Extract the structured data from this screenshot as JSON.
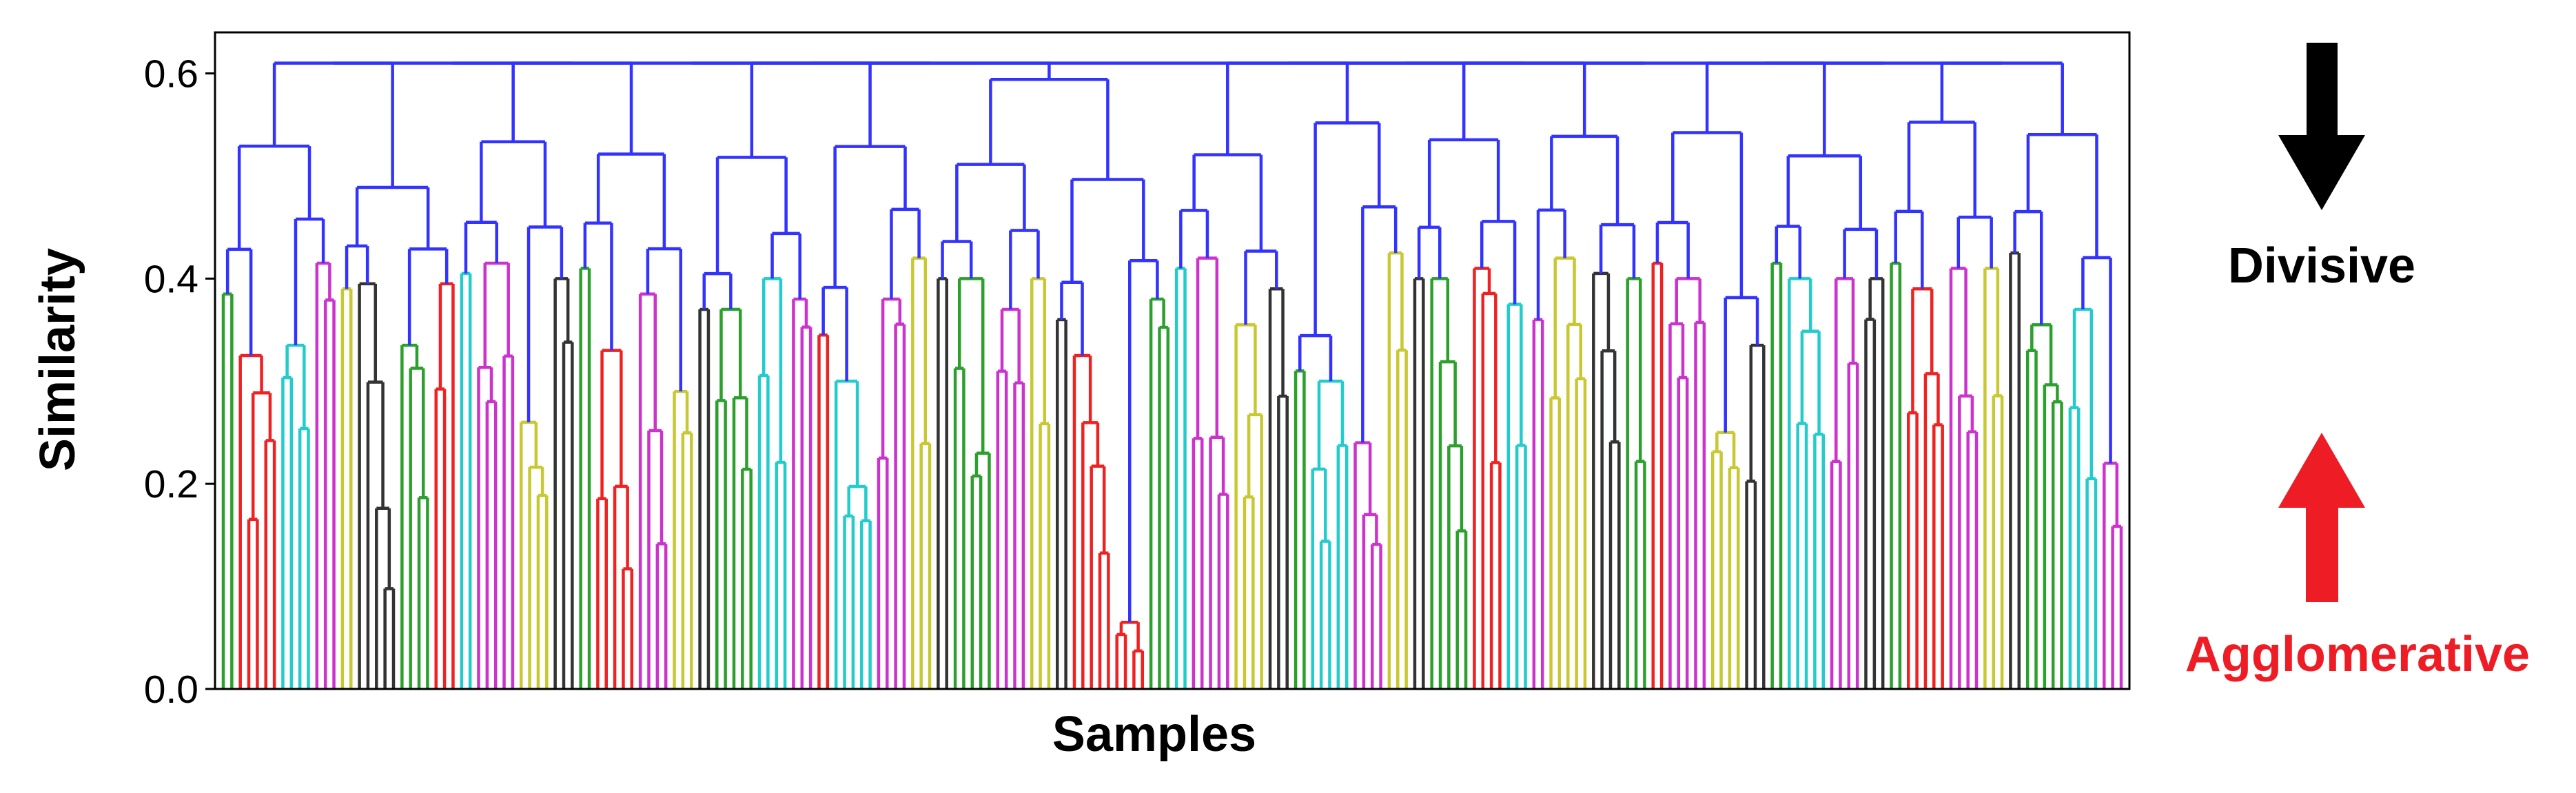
{
  "chart_data": {
    "type": "dendrogram",
    "title": "",
    "xlabel": "Samples",
    "ylabel": "Similarity",
    "ylim": [
      0.0,
      0.64
    ],
    "yticks": [
      0.0,
      0.2,
      0.4,
      0.6
    ],
    "ytick_labels": [
      "0.0",
      "0.2",
      "0.4",
      "0.6"
    ],
    "grid": false,
    "legend": "none",
    "root_height": 0.61,
    "top_merge_color": "#3333ff",
    "cluster_colors": [
      "#2ca02c",
      "#ee2222",
      "#22cccc",
      "#cc33cc",
      "#c8c832",
      "#333333"
    ],
    "clusters": [
      {
        "color_index": 0,
        "height": 0.385
      },
      {
        "color_index": 1,
        "height": 0.325
      },
      {
        "color_index": 2,
        "height": 0.335
      },
      {
        "color_index": 3,
        "height": 0.415
      },
      {
        "color_index": 4,
        "height": 0.39
      },
      {
        "color_index": 5,
        "height": 0.395
      },
      {
        "color_index": 0,
        "height": 0.335
      },
      {
        "color_index": 1,
        "height": 0.395
      },
      {
        "color_index": 2,
        "height": 0.405
      },
      {
        "color_index": 3,
        "height": 0.415
      },
      {
        "color_index": 4,
        "height": 0.26
      },
      {
        "color_index": 5,
        "height": 0.4
      },
      {
        "color_index": 0,
        "height": 0.41
      },
      {
        "color_index": 1,
        "height": 0.33
      },
      {
        "color_index": 3,
        "height": 0.385
      },
      {
        "color_index": 4,
        "height": 0.29
      },
      {
        "color_index": 5,
        "height": 0.37
      },
      {
        "color_index": 0,
        "height": 0.37
      },
      {
        "color_index": 2,
        "height": 0.4
      },
      {
        "color_index": 3,
        "height": 0.38
      },
      {
        "color_index": 1,
        "height": 0.345
      },
      {
        "color_index": 2,
        "height": 0.3
      },
      {
        "color_index": 3,
        "height": 0.38
      },
      {
        "color_index": 4,
        "height": 0.42
      },
      {
        "color_index": 5,
        "height": 0.4
      },
      {
        "color_index": 0,
        "height": 0.4
      },
      {
        "color_index": 3,
        "height": 0.37
      },
      {
        "color_index": 4,
        "height": 0.4
      },
      {
        "color_index": 5,
        "height": 0.36
      },
      {
        "color_index": 1,
        "height": 0.325
      },
      {
        "color_index": 1,
        "height": 0.065
      },
      {
        "color_index": 0,
        "height": 0.38
      },
      {
        "color_index": 2,
        "height": 0.41
      },
      {
        "color_index": 3,
        "height": 0.42
      },
      {
        "color_index": 4,
        "height": 0.355
      },
      {
        "color_index": 5,
        "height": 0.39
      },
      {
        "color_index": 0,
        "height": 0.31
      },
      {
        "color_index": 2,
        "height": 0.3
      },
      {
        "color_index": 3,
        "height": 0.24
      },
      {
        "color_index": 4,
        "height": 0.425
      },
      {
        "color_index": 5,
        "height": 0.4
      },
      {
        "color_index": 0,
        "height": 0.4
      },
      {
        "color_index": 1,
        "height": 0.41
      },
      {
        "color_index": 2,
        "height": 0.375
      },
      {
        "color_index": 3,
        "height": 0.36
      },
      {
        "color_index": 4,
        "height": 0.42
      },
      {
        "color_index": 5,
        "height": 0.405
      },
      {
        "color_index": 0,
        "height": 0.4
      },
      {
        "color_index": 1,
        "height": 0.415
      },
      {
        "color_index": 3,
        "height": 0.4
      },
      {
        "color_index": 4,
        "height": 0.25
      },
      {
        "color_index": 5,
        "height": 0.335
      },
      {
        "color_index": 0,
        "height": 0.415
      },
      {
        "color_index": 2,
        "height": 0.4
      },
      {
        "color_index": 3,
        "height": 0.4
      },
      {
        "color_index": 5,
        "height": 0.4
      },
      {
        "color_index": 0,
        "height": 0.415
      },
      {
        "color_index": 1,
        "height": 0.39
      },
      {
        "color_index": 3,
        "height": 0.41
      },
      {
        "color_index": 4,
        "height": 0.41
      },
      {
        "color_index": 5,
        "height": 0.425
      },
      {
        "color_index": 0,
        "height": 0.355
      },
      {
        "color_index": 2,
        "height": 0.37
      },
      {
        "color_index": 3,
        "height": 0.22
      }
    ]
  },
  "annotations": {
    "divisive_label": "Divisive",
    "agglomerative_label": "Agglomerative",
    "divisive_color": "#000000",
    "agglomerative_color": "#ee1c24"
  }
}
